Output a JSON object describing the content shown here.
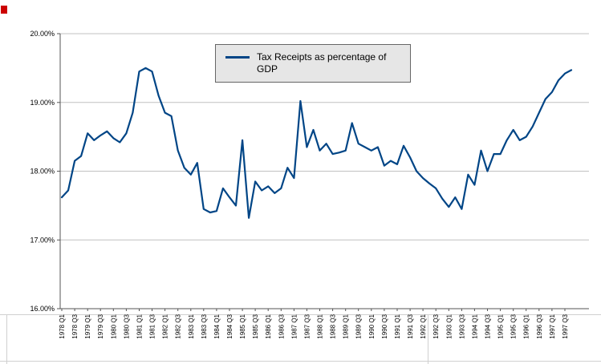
{
  "chart_data": {
    "type": "line",
    "title": "",
    "legend": {
      "label": "Tax Receipts as percentage of GDP",
      "position": "top-center"
    },
    "ylabel": "",
    "xlabel": "",
    "ylim": [
      16,
      20
    ],
    "ytick_step": 1,
    "ytick_labels": [
      "16.00%",
      "17.00%",
      "18.00%",
      "19.00%",
      "20.00%"
    ],
    "label_every": 2,
    "grid": true,
    "categories": [
      "1978 Q1",
      "1978 Q2",
      "1978 Q3",
      "1978 Q4",
      "1979 Q1",
      "1979 Q2",
      "1979 Q3",
      "1979 Q4",
      "1980 Q1",
      "1980 Q2",
      "1980 Q3",
      "1980 Q4",
      "1981 Q1",
      "1981 Q2",
      "1981 Q3",
      "1981 Q4",
      "1982 Q1",
      "1982 Q2",
      "1982 Q3",
      "1982 Q4",
      "1983 Q1",
      "1983 Q2",
      "1983 Q3",
      "1983 Q4",
      "1984 Q1",
      "1984 Q2",
      "1984 Q3",
      "1984 Q4",
      "1985 Q1",
      "1985 Q2",
      "1985 Q3",
      "1985 Q4",
      "1986 Q1",
      "1986 Q2",
      "1986 Q3",
      "1986 Q4",
      "1987 Q1",
      "1987 Q2",
      "1987 Q3",
      "1987 Q4",
      "1988 Q1",
      "1988 Q2",
      "1988 Q3",
      "1988 Q4",
      "1989 Q1",
      "1989 Q2",
      "1989 Q3",
      "1989 Q4",
      "1990 Q1",
      "1990 Q2",
      "1990 Q3",
      "1990 Q4",
      "1991 Q1",
      "1991 Q2",
      "1991 Q3",
      "1991 Q4",
      "1992 Q1",
      "1992 Q2",
      "1992 Q3",
      "1992 Q4",
      "1993 Q1",
      "1993 Q2",
      "1993 Q3",
      "1993 Q4",
      "1994 Q1",
      "1994 Q2",
      "1994 Q3",
      "1994 Q4",
      "1995 Q1",
      "1995 Q2",
      "1995 Q3",
      "1995 Q4",
      "1996 Q1",
      "1996 Q2",
      "1996 Q3",
      "1996 Q4",
      "1997 Q1",
      "1997 Q2",
      "1997 Q3",
      "1997 Q4"
    ],
    "series": [
      {
        "name": "Tax Receipts as percentage of GDP",
        "color": "#004586",
        "values": [
          17.62,
          17.72,
          18.15,
          18.22,
          18.55,
          18.45,
          18.52,
          18.58,
          18.48,
          18.42,
          18.55,
          18.85,
          19.45,
          19.5,
          19.45,
          19.1,
          18.85,
          18.8,
          18.3,
          18.05,
          17.95,
          18.12,
          17.45,
          17.4,
          17.42,
          17.75,
          17.62,
          17.5,
          18.45,
          17.32,
          17.85,
          17.72,
          17.78,
          17.68,
          17.75,
          18.05,
          17.9,
          19.02,
          18.35,
          18.6,
          18.3,
          18.4,
          18.25,
          18.27,
          18.3,
          18.7,
          18.4,
          18.35,
          18.3,
          18.35,
          18.08,
          18.15,
          18.1,
          18.37,
          18.2,
          18.0,
          17.9,
          17.82,
          17.75,
          17.6,
          17.48,
          17.62,
          17.45,
          17.95,
          17.8,
          18.3,
          18.0,
          18.25,
          18.25,
          18.45,
          18.6,
          18.45,
          18.5,
          18.65,
          18.85,
          19.05,
          19.15,
          19.32,
          19.42,
          19.47
        ]
      }
    ]
  },
  "decor": {
    "marker_color": "#cc0000",
    "gridline_color": "#c0c0c0",
    "axis_color": "#555555",
    "sheet_line_color": "#d0d0d0"
  }
}
